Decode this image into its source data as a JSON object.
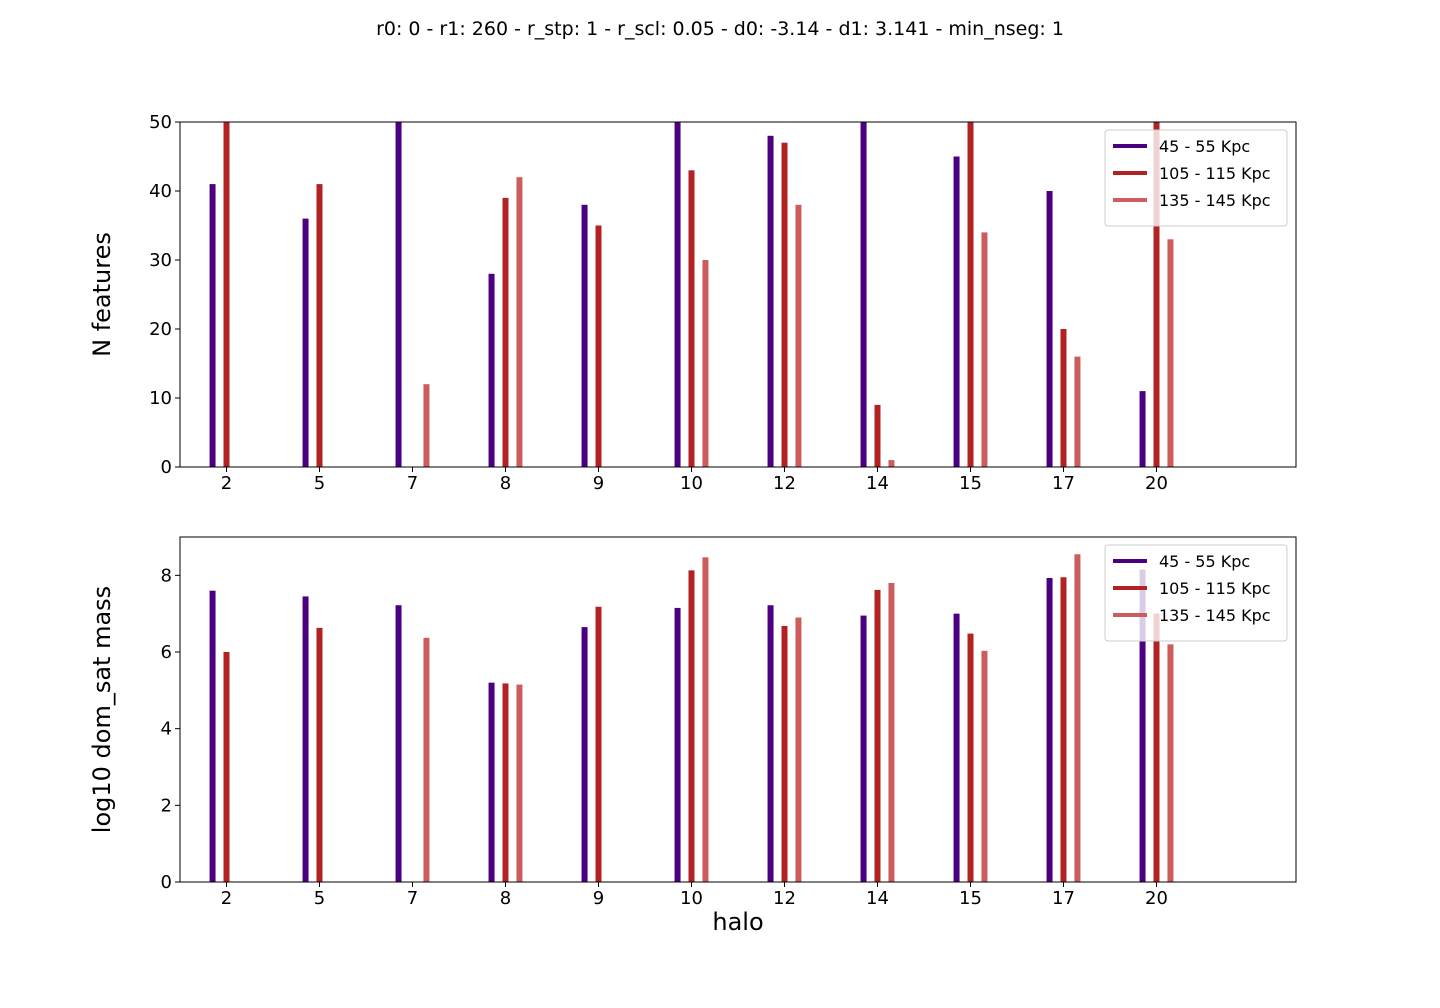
{
  "figure": {
    "suptitle": "r0: 0 - r1: 260 - r_stp: 1 - r_scl: 0.05 - d0: -3.14 - d1: 3.141 - min_nseg: 1"
  },
  "colors": {
    "series_45_55": "#4b0082",
    "series_105_115": "#b22222",
    "series_135_145": "#cd5c5c"
  },
  "chart_data": [
    {
      "type": "bar",
      "categories": [
        "2",
        "5",
        "7",
        "8",
        "9",
        "10",
        "12",
        "14",
        "15",
        "17",
        "20"
      ],
      "xlabel": "",
      "ylabel": "N features",
      "ylim": [
        0,
        50
      ],
      "yticks": [
        0,
        10,
        20,
        30,
        40,
        50
      ],
      "grid": false,
      "legend_position": "top-right",
      "series": [
        {
          "name": "45 - 55 Kpc",
          "values": [
            41,
            36,
            50,
            28,
            38,
            50,
            48,
            50,
            45,
            40,
            11
          ]
        },
        {
          "name": "105 - 115 Kpc",
          "values": [
            50,
            41,
            0,
            39,
            35,
            43,
            47,
            9,
            50,
            20,
            50
          ]
        },
        {
          "name": "135 - 145 Kpc",
          "values": [
            0,
            0,
            12,
            42,
            0,
            30,
            38,
            1,
            34,
            16,
            33
          ]
        }
      ]
    },
    {
      "type": "bar",
      "categories": [
        "2",
        "5",
        "7",
        "8",
        "9",
        "10",
        "12",
        "14",
        "15",
        "17",
        "20"
      ],
      "xlabel": "halo",
      "ylabel": "log10 dom_sat mass",
      "ylim": [
        0,
        9
      ],
      "yticks": [
        0,
        2,
        4,
        6,
        8
      ],
      "grid": false,
      "legend_position": "top-right",
      "series": [
        {
          "name": "45 - 55 Kpc",
          "values": [
            7.6,
            7.45,
            7.22,
            5.2,
            6.65,
            7.15,
            7.22,
            6.95,
            7.0,
            7.93,
            8.15
          ]
        },
        {
          "name": "105 - 115 Kpc",
          "values": [
            6.0,
            6.63,
            0,
            5.18,
            7.18,
            8.13,
            6.68,
            7.62,
            6.48,
            7.95,
            7.0
          ]
        },
        {
          "name": "135 - 145 Kpc",
          "values": [
            0,
            0,
            6.37,
            5.15,
            0,
            8.47,
            6.9,
            7.8,
            6.03,
            8.55,
            6.2
          ]
        }
      ]
    }
  ]
}
